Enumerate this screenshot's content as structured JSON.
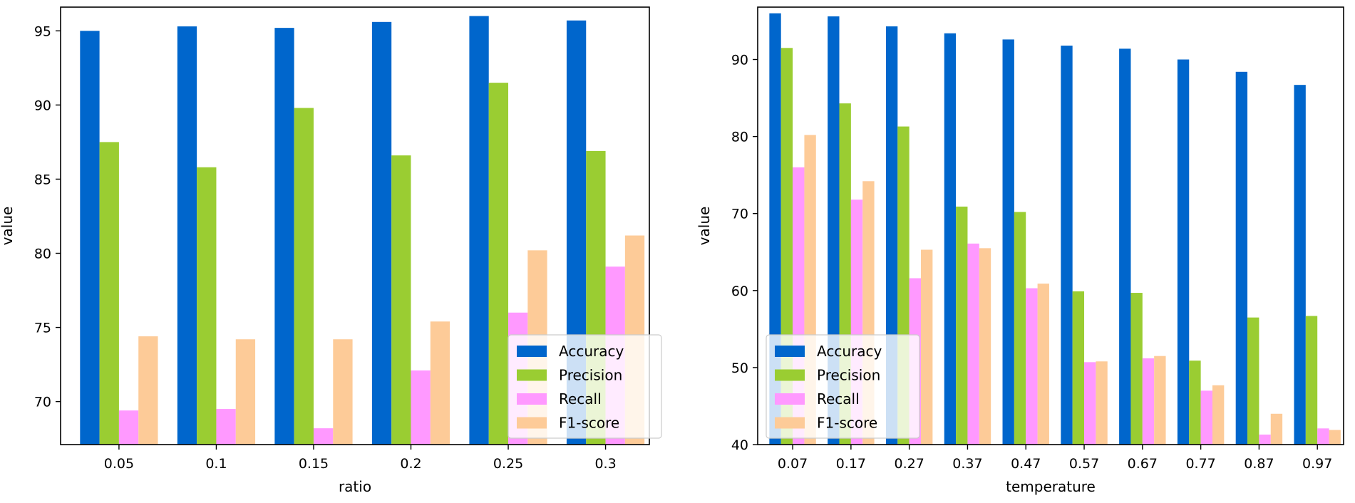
{
  "colors": {
    "Accuracy": "#0066cc",
    "Precision": "#9acd32",
    "Recall": "#ff99ff",
    "F1-score": "#fdcb98",
    "axis": "#000000"
  },
  "chart_data": [
    {
      "type": "bar",
      "title": "",
      "xlabel": "ratio",
      "ylabel": "value",
      "categories": [
        "0.05",
        "0.1",
        "0.15",
        "0.2",
        "0.25",
        "0.3"
      ],
      "ylim": [
        67.1,
        96.6
      ],
      "yticks": [
        70,
        75,
        80,
        85,
        90,
        95
      ],
      "legend_position": "lower-right",
      "series": [
        {
          "name": "Accuracy",
          "values": [
            95.0,
            95.3,
            95.2,
            95.6,
            96.0,
            95.7
          ]
        },
        {
          "name": "Precision",
          "values": [
            87.5,
            85.8,
            89.8,
            86.6,
            91.5,
            86.9
          ]
        },
        {
          "name": "Recall",
          "values": [
            69.4,
            69.5,
            68.2,
            72.1,
            76.0,
            79.1
          ]
        },
        {
          "name": "F1-score",
          "values": [
            74.4,
            74.2,
            74.2,
            75.4,
            80.2,
            81.2
          ]
        }
      ]
    },
    {
      "type": "bar",
      "title": "",
      "xlabel": "temperature",
      "ylabel": "value",
      "categories": [
        "0.07",
        "0.17",
        "0.27",
        "0.37",
        "0.47",
        "0.57",
        "0.67",
        "0.77",
        "0.87",
        "0.97"
      ],
      "ylim": [
        40,
        96.8
      ],
      "yticks": [
        40,
        50,
        60,
        70,
        80,
        90
      ],
      "legend_position": "lower-left",
      "series": [
        {
          "name": "Accuracy",
          "values": [
            96.0,
            95.6,
            94.3,
            93.4,
            92.6,
            91.8,
            91.4,
            90.0,
            88.4,
            86.7
          ]
        },
        {
          "name": "Precision",
          "values": [
            91.5,
            84.3,
            81.3,
            70.9,
            70.2,
            59.9,
            59.7,
            50.9,
            56.5,
            56.7
          ]
        },
        {
          "name": "Recall",
          "values": [
            76.0,
            71.8,
            61.6,
            66.1,
            60.3,
            50.7,
            51.2,
            47.0,
            41.3,
            42.1
          ]
        },
        {
          "name": "F1-score",
          "values": [
            80.2,
            74.2,
            65.3,
            65.5,
            60.9,
            50.8,
            51.5,
            47.7,
            44.0,
            41.9
          ]
        }
      ]
    }
  ]
}
